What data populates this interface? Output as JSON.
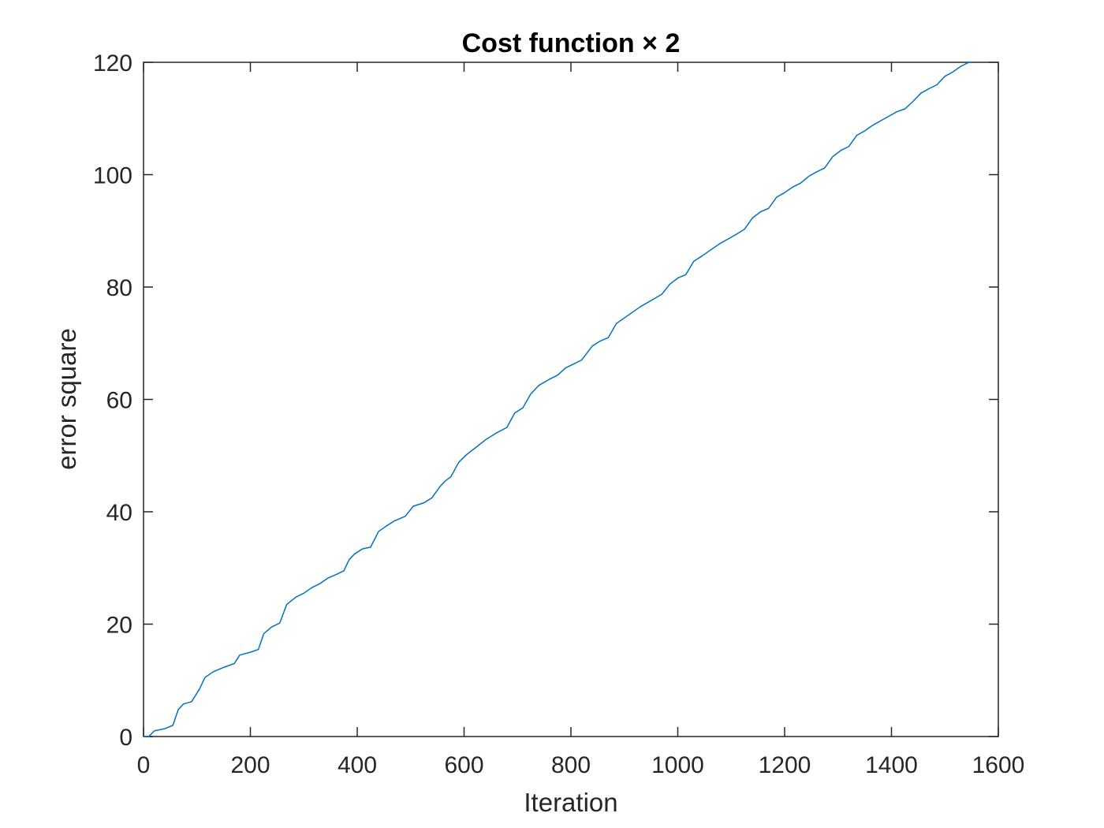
{
  "chart_data": {
    "type": "line",
    "title": "Cost function × 2",
    "xlabel": "Iteration",
    "ylabel": "error square",
    "xlim": [
      0,
      1600
    ],
    "ylim": [
      0,
      120
    ],
    "xticks": [
      0,
      200,
      400,
      600,
      800,
      1000,
      1200,
      1400,
      1600
    ],
    "yticks": [
      0,
      20,
      40,
      60,
      80,
      100,
      120
    ],
    "xtick_labels": [
      "0",
      "200",
      "400",
      "600",
      "800",
      "1000",
      "1200",
      "1400",
      "1600"
    ],
    "ytick_labels": [
      "0",
      "20",
      "40",
      "60",
      "80",
      "100",
      "120"
    ],
    "grid": false,
    "legend": "none",
    "series": [
      {
        "color": "#0072BD",
        "x": [
          0,
          10,
          20,
          40,
          55,
          65,
          75,
          90,
          105,
          115,
          130,
          150,
          170,
          180,
          200,
          215,
          225,
          240,
          255,
          268,
          285,
          300,
          315,
          330,
          345,
          360,
          375,
          385,
          395,
          410,
          425,
          440,
          455,
          470,
          490,
          505,
          525,
          540,
          555,
          565,
          575,
          590,
          605,
          620,
          640,
          660,
          680,
          695,
          710,
          725,
          740,
          760,
          775,
          790,
          805,
          820,
          840,
          855,
          870,
          885,
          900,
          915,
          930,
          950,
          970,
          985,
          1000,
          1015,
          1030,
          1045,
          1060,
          1080,
          1095,
          1110,
          1125,
          1140,
          1155,
          1170,
          1185,
          1200,
          1215,
          1230,
          1245,
          1260,
          1275,
          1290,
          1305,
          1320,
          1335,
          1350,
          1365,
          1380,
          1395,
          1410,
          1425,
          1440,
          1455,
          1470,
          1485,
          1500,
          1515,
          1530,
          1545,
          1550
        ],
        "y": [
          0,
          0,
          1,
          1.4,
          2,
          4.8,
          5.8,
          6.2,
          8.5,
          10.5,
          11.5,
          12.3,
          13.0,
          14.5,
          15.0,
          15.5,
          18.3,
          19.5,
          20.2,
          23.5,
          24.8,
          25.5,
          26.5,
          27.2,
          28.2,
          28.8,
          29.5,
          31.5,
          32.5,
          33.4,
          33.7,
          36.5,
          37.5,
          38.4,
          39.2,
          41.0,
          41.6,
          42.5,
          44.5,
          45.5,
          46.2,
          48.8,
          50.2,
          51.3,
          52.8,
          54.0,
          55.0,
          57.6,
          58.5,
          61.0,
          62.5,
          63.6,
          64.3,
          65.6,
          66.3,
          67.0,
          69.5,
          70.4,
          71.0,
          73.5,
          74.5,
          75.5,
          76.5,
          77.6,
          78.7,
          80.5,
          81.6,
          82.2,
          84.6,
          85.5,
          86.5,
          87.8,
          88.6,
          89.4,
          90.3,
          92.3,
          93.4,
          94.0,
          96.0,
          96.8,
          97.8,
          98.5,
          99.7,
          100.5,
          101.2,
          103.2,
          104.3,
          105.0,
          107.0,
          107.8,
          108.8,
          109.6,
          110.4,
          111.2,
          111.7,
          113.0,
          114.5,
          115.3,
          116.0,
          117.5,
          118.3,
          119.3,
          120.0,
          120.0
        ]
      }
    ]
  }
}
